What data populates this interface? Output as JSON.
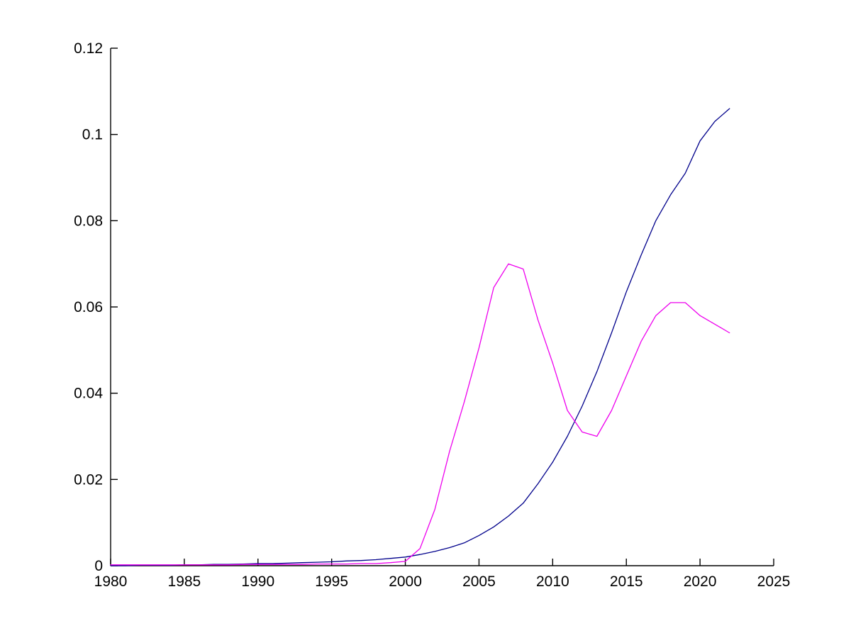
{
  "figure": {
    "background_color": "#ffffff",
    "axis_color": "#000000",
    "tick_label_color": "#000000"
  },
  "chart_data": {
    "type": "line",
    "title": "",
    "xlabel": "",
    "ylabel": "",
    "grid": false,
    "legend": "none",
    "xlim": [
      1980,
      2025
    ],
    "ylim": [
      0,
      0.12
    ],
    "xticks": {
      "values": [
        1980,
        1985,
        1990,
        1995,
        2000,
        2005,
        2010,
        2015,
        2020,
        2025
      ],
      "labels": [
        "1980",
        "1985",
        "1990",
        "1995",
        "2000",
        "2005",
        "2010",
        "2015",
        "2020",
        "2025"
      ]
    },
    "yticks": {
      "values": [
        0,
        0.02,
        0.04,
        0.06,
        0.08,
        0.1,
        0.12
      ],
      "labels": [
        "0",
        "0.02",
        "0.04",
        "0.06",
        "0.08",
        "0.1",
        "0.12"
      ]
    },
    "x": [
      1980,
      1981,
      1982,
      1983,
      1984,
      1985,
      1986,
      1987,
      1988,
      1989,
      1990,
      1991,
      1992,
      1993,
      1994,
      1995,
      1996,
      1997,
      1998,
      1999,
      2000,
      2001,
      2002,
      2003,
      2004,
      2005,
      2006,
      2007,
      2008,
      2009,
      2010,
      2011,
      2012,
      2013,
      2014,
      2015,
      2016,
      2017,
      2018,
      2019,
      2020,
      2021,
      2022
    ],
    "series": [
      {
        "name": "dark-blue-series",
        "color": "#00008B",
        "values": [
          0.0,
          0.0,
          0.0001,
          0.0001,
          0.0001,
          0.0002,
          0.0002,
          0.0003,
          0.0003,
          0.0004,
          0.0005,
          0.0005,
          0.0006,
          0.0007,
          0.0008,
          0.0009,
          0.0011,
          0.0012,
          0.0014,
          0.0017,
          0.002,
          0.0026,
          0.0033,
          0.0042,
          0.0053,
          0.007,
          0.009,
          0.0115,
          0.0145,
          0.019,
          0.024,
          0.03,
          0.037,
          0.045,
          0.054,
          0.0635,
          0.072,
          0.08,
          0.086,
          0.091,
          0.0985,
          0.103,
          0.106
        ]
      },
      {
        "name": "magenta-series",
        "color": "#EE00EE",
        "values": [
          0.0002,
          0.0002,
          0.0002,
          0.0002,
          0.0002,
          0.0002,
          0.0002,
          0.0002,
          0.0002,
          0.0003,
          0.0003,
          0.0003,
          0.0003,
          0.0003,
          0.0004,
          0.0004,
          0.0004,
          0.0005,
          0.0005,
          0.0007,
          0.001,
          0.004,
          0.013,
          0.0265,
          0.038,
          0.0505,
          0.0645,
          0.07,
          0.0688,
          0.057,
          0.047,
          0.036,
          0.031,
          0.03,
          0.036,
          0.044,
          0.052,
          0.058,
          0.061,
          0.061,
          0.058,
          0.056,
          0.054
        ]
      }
    ]
  }
}
